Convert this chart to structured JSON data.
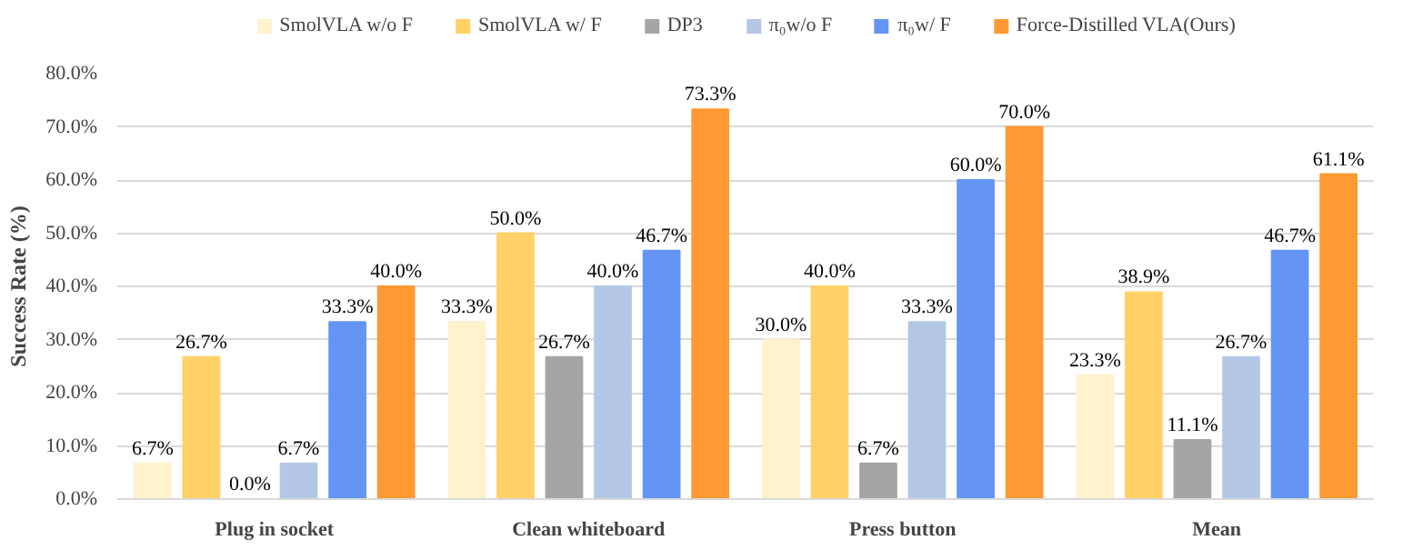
{
  "chart_data": {
    "type": "bar",
    "ylabel": "Success Rate (%)",
    "categories": [
      "Plug in socket",
      "Clean whiteboard",
      "Press button",
      "Mean"
    ],
    "series": [
      {
        "name": "SmolVLA w/o F",
        "color": "#fff2cc",
        "values": [
          6.7,
          33.3,
          30.0,
          23.3
        ],
        "value_labels": [
          "6.7%",
          "33.3%",
          "30.0%",
          "23.3%"
        ]
      },
      {
        "name": "SmolVLA w/ F",
        "color": "#ffd166",
        "values": [
          26.7,
          50.0,
          40.0,
          38.9
        ],
        "value_labels": [
          "26.7%",
          "50.0%",
          "40.0%",
          "38.9%"
        ]
      },
      {
        "name": "DP3",
        "color": "#a5a5a5",
        "values": [
          0.0,
          26.7,
          6.7,
          11.1
        ],
        "value_labels": [
          "0.0%",
          "26.7%",
          "6.7%",
          "11.1%"
        ]
      },
      {
        "name": "π₀w/o F",
        "color": "#b4c7e7",
        "values": [
          6.7,
          40.0,
          33.3,
          26.7
        ],
        "value_labels": [
          "6.7%",
          "40.0%",
          "33.3%",
          "26.7%"
        ]
      },
      {
        "name": "π₀w/ F",
        "color": "#6495f5",
        "values": [
          33.3,
          46.7,
          60.0,
          46.7
        ],
        "value_labels": [
          "33.3%",
          "46.7%",
          "60.0%",
          "46.7%"
        ]
      },
      {
        "name": "Force-Distilled VLA(Ours)",
        "color": "#ff9933",
        "values": [
          40.0,
          73.3,
          70.0,
          61.1
        ],
        "value_labels": [
          "40.0%",
          "73.3%",
          "70.0%",
          "61.1%"
        ]
      }
    ],
    "ylim": [
      0,
      80
    ],
    "yticks": [
      {
        "value": 0,
        "label": "0.0%"
      },
      {
        "value": 10,
        "label": "10.0%"
      },
      {
        "value": 20,
        "label": "20.0%"
      },
      {
        "value": 30,
        "label": "30.0%"
      },
      {
        "value": 40,
        "label": "40.0%"
      },
      {
        "value": 50,
        "label": "50.0%"
      },
      {
        "value": 60,
        "label": "60.0%"
      },
      {
        "value": 70,
        "label": "70.0%"
      },
      {
        "value": 80,
        "label": "80.0%"
      }
    ],
    "grid": "y",
    "legend": "top"
  }
}
